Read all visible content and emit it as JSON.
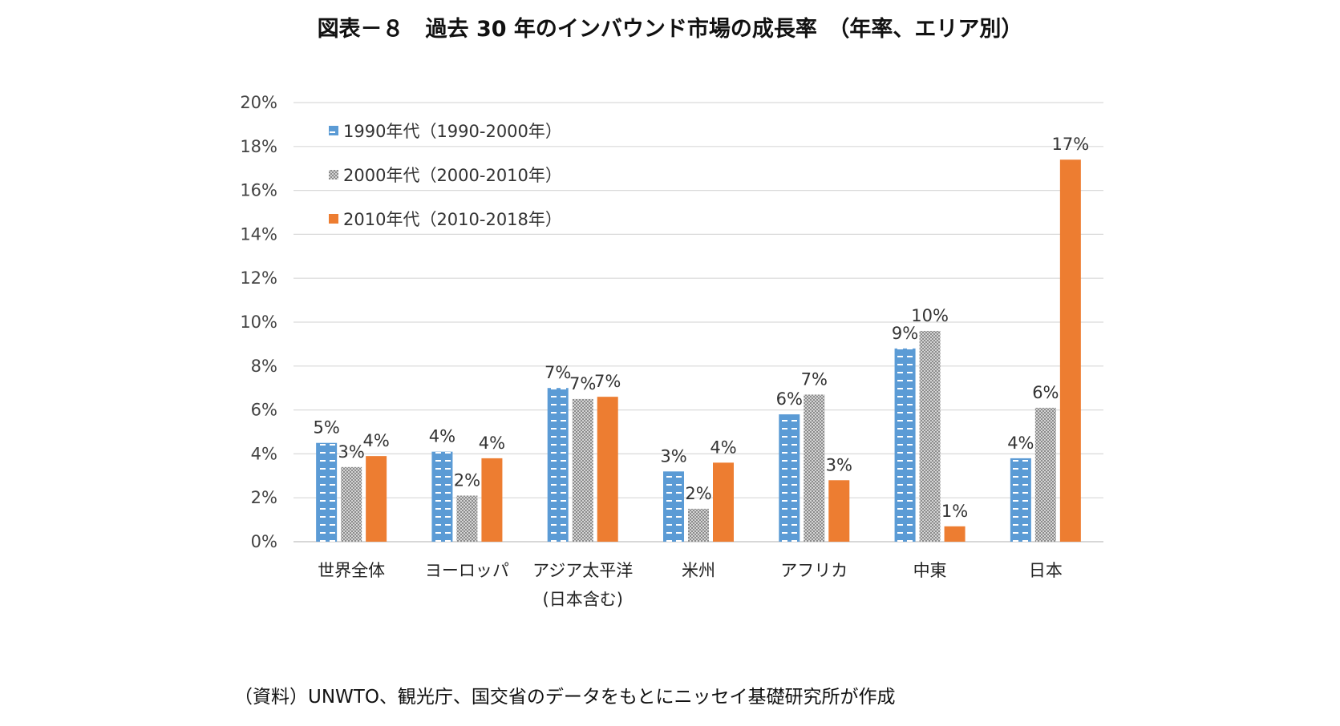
{
  "title": "図表－８　過去 30 年のインバウンド市場の成長率　（年率、エリア別）",
  "source": "（資料）UNWTO、観光庁、国交省のデータをもとにニッセイ基礎研究所が作成",
  "colors": {
    "series1": "#5b9bd5",
    "series2": "#a5a5a5",
    "series3": "#ed7d31",
    "grid": "#d9d9d9"
  },
  "chart_data": {
    "type": "bar",
    "title": "図表－８　過去 30 年のインバウンド市場の成長率　（年率、エリア別）",
    "xlabel": "",
    "ylabel": "",
    "ylim": [
      0,
      20
    ],
    "ytick_step": 2,
    "yticks": [
      "0%",
      "2%",
      "4%",
      "6%",
      "8%",
      "10%",
      "12%",
      "14%",
      "16%",
      "18%",
      "20%"
    ],
    "grid": true,
    "legend_position": "top-left",
    "categories": [
      [
        "世界全体"
      ],
      [
        "ヨーロッパ"
      ],
      [
        "アジア太平洋",
        "(日本含む)"
      ],
      [
        "米州"
      ],
      [
        "アフリカ"
      ],
      [
        "中東"
      ],
      [
        "日本"
      ]
    ],
    "series": [
      {
        "name": "1990年代（1990-2000年）",
        "pattern": "dashes",
        "values": [
          4.5,
          4.1,
          7.0,
          3.2,
          5.8,
          8.8,
          3.8
        ],
        "labels": [
          "5%",
          "4%",
          "7%",
          "3%",
          "6%",
          "9%",
          "4%"
        ]
      },
      {
        "name": "2000年代（2000-2010年）",
        "pattern": "dots",
        "values": [
          3.4,
          2.1,
          6.5,
          1.5,
          6.7,
          9.6,
          6.1
        ],
        "labels": [
          "3%",
          "2%",
          "7%",
          "2%",
          "7%",
          "10%",
          "6%"
        ]
      },
      {
        "name": "2010年代（2010-2018年）",
        "pattern": "solid",
        "values": [
          3.9,
          3.8,
          6.6,
          3.6,
          2.8,
          0.7,
          17.4
        ],
        "labels": [
          "4%",
          "4%",
          "7%",
          "4%",
          "3%",
          "1%",
          "17%"
        ]
      }
    ]
  }
}
